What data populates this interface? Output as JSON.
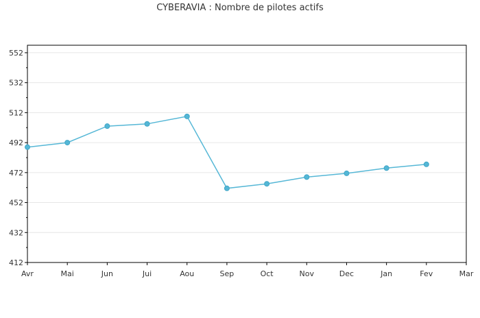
{
  "chart_data": {
    "type": "line",
    "title": "CYBERAVIA : Nombre de pilotes actifs",
    "categories": [
      "Avr",
      "Mai",
      "Jun",
      "Jui",
      "Aou",
      "Sep",
      "Oct",
      "Nov",
      "Dec",
      "Jan",
      "Fev",
      "Mar"
    ],
    "series": [
      {
        "values": [
          489,
          492,
          503,
          504.5,
          509.5,
          461.5,
          464.5,
          469,
          471.5,
          475,
          477.5,
          null
        ]
      }
    ],
    "yticks": [
      412,
      432,
      452,
      472,
      492,
      512,
      532,
      552
    ],
    "ylim": [
      412,
      557
    ],
    "grid": true,
    "line_color": "#55b7d6",
    "grid_color": "#e6e6e6",
    "axis_color": "#000000"
  }
}
